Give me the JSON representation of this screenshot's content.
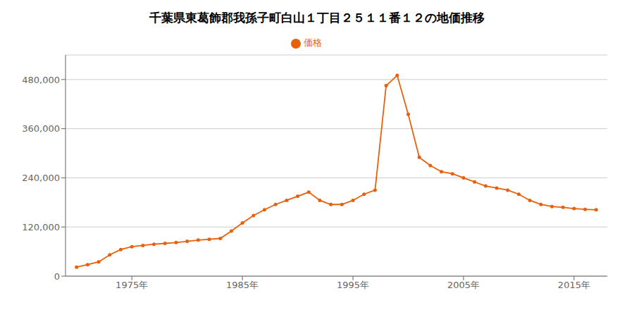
{
  "chart_data": {
    "type": "line",
    "title": "千葉県東葛飾郡我孫子町白山１丁目２５１１番１２の地価推移",
    "x": [
      1970,
      1971,
      1972,
      1973,
      1974,
      1975,
      1976,
      1977,
      1978,
      1979,
      1980,
      1981,
      1982,
      1983,
      1984,
      1985,
      1986,
      1987,
      1988,
      1989,
      1990,
      1991,
      1992,
      1993,
      1994,
      1995,
      1996,
      1997,
      1998,
      1999,
      2000,
      2001,
      2002,
      2003,
      2004,
      2005,
      2006,
      2007,
      2008,
      2009,
      2010,
      2011,
      2012,
      2013,
      2014,
      2015,
      2016,
      2017
    ],
    "series": [
      {
        "name": "価格",
        "color": "#E8610A",
        "marker": "circle",
        "values": [
          22000,
          28000,
          35000,
          52000,
          65000,
          72000,
          75000,
          78000,
          80000,
          82000,
          85000,
          88000,
          90000,
          92000,
          110000,
          130000,
          148000,
          162000,
          175000,
          185000,
          195000,
          205000,
          185000,
          175000,
          175000,
          185000,
          200000,
          210000,
          465000,
          490000,
          395000,
          290000,
          270000,
          255000,
          250000,
          240000,
          230000,
          220000,
          215000,
          210000,
          200000,
          185000,
          175000,
          170000,
          168000,
          165000,
          163000,
          162000
        ]
      }
    ],
    "xlim": [
      1969,
      2018
    ],
    "xticks": [
      {
        "value": 1975,
        "label": "1975年"
      },
      {
        "value": 1985,
        "label": "1985年"
      },
      {
        "value": 1995,
        "label": "1995年"
      },
      {
        "value": 2005,
        "label": "2005年"
      },
      {
        "value": 2015,
        "label": "2015年"
      }
    ],
    "ylim": [
      0,
      540000
    ],
    "yticks": [
      0,
      {
        "value": 120000,
        "label": "120,000"
      },
      {
        "value": 240000,
        "label": "240,000"
      },
      {
        "value": 360000,
        "label": "360,000"
      },
      {
        "value": 480000,
        "label": "480,000"
      }
    ],
    "grid": "y",
    "legend": "top"
  }
}
